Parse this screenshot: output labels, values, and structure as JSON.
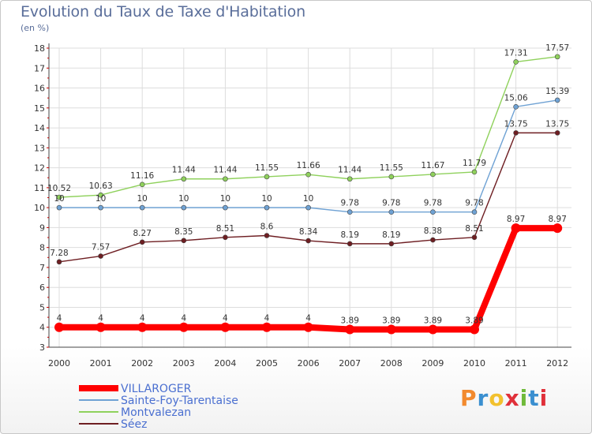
{
  "title": "Evolution du Taux de Taxe d'Habitation",
  "unit_label": "(en %)",
  "logo_text": "Proxiti",
  "chart_data": {
    "type": "line",
    "title": "Evolution du Taux de Taxe d'Habitation",
    "ylabel": "(en %)",
    "xlabel": "",
    "ylim": [
      3,
      18
    ],
    "y_ticks": [
      3,
      4,
      5,
      6,
      7,
      8,
      9,
      10,
      11,
      12,
      13,
      14,
      15,
      16,
      17,
      18
    ],
    "grid": true,
    "legend_position": "bottom-left",
    "x": [
      "2000",
      "2001",
      "2002",
      "2003",
      "2004",
      "2005",
      "2006",
      "2007",
      "2008",
      "2009",
      "2010",
      "2011",
      "2012"
    ],
    "series": [
      {
        "name": "Séez",
        "color": "#6e1e22",
        "values": [
          7.28,
          7.57,
          8.27,
          8.35,
          8.51,
          8.6,
          8.34,
          8.19,
          8.19,
          8.38,
          8.51,
          13.75,
          13.75
        ],
        "labels": [
          "7.28",
          "7.57",
          "8.27",
          "8.35",
          "8.51",
          "8.6",
          "8.34",
          "8.19",
          "8.19",
          "8.38",
          "8.51",
          "13.75",
          "13.75"
        ]
      },
      {
        "name": "Montvalezan",
        "color": "#8fd15c",
        "values": [
          10.52,
          10.63,
          11.16,
          11.44,
          11.44,
          11.55,
          11.66,
          11.44,
          11.55,
          11.67,
          11.79,
          17.31,
          17.57
        ],
        "labels": [
          "10.52",
          "10.63",
          "11.16",
          "11.44",
          "11.44",
          "11.55",
          "11.66",
          "11.44",
          "11.55",
          "11.67",
          "11.79",
          "17.31",
          "17.57"
        ]
      },
      {
        "name": "Sainte-Foy-Tarentaise",
        "color": "#6fa2d4",
        "values": [
          10,
          10,
          10,
          10,
          10,
          10,
          10,
          9.78,
          9.78,
          9.78,
          9.78,
          15.06,
          15.39
        ],
        "labels": [
          "10",
          "10",
          "10",
          "10",
          "10",
          "10",
          "10",
          "9.78",
          "9.78",
          "9.78",
          "9.78",
          "15.06",
          "15.39"
        ]
      },
      {
        "name": "VILLAROGER",
        "color": "#ff0000",
        "values": [
          4,
          4,
          4,
          4,
          4,
          4,
          4,
          3.89,
          3.89,
          3.89,
          3.89,
          8.97,
          8.97
        ],
        "labels": [
          "4",
          "4",
          "4",
          "4",
          "4",
          "4",
          "4",
          "3.89",
          "3.89",
          "3.89",
          "3.89",
          "8.97",
          "8.97"
        ]
      }
    ],
    "legend": [
      "VILLAROGER",
      "Sainte-Foy-Tarentaise",
      "Montvalezan",
      "Séez"
    ],
    "legend_colors": [
      "#ff0000",
      "#6fa2d4",
      "#8fd15c",
      "#6e1e22"
    ]
  },
  "colors": {
    "title": "#5a6e9a",
    "legend_text": "#4a6fd0",
    "axis": "#444444",
    "grid": "#dddddd"
  }
}
